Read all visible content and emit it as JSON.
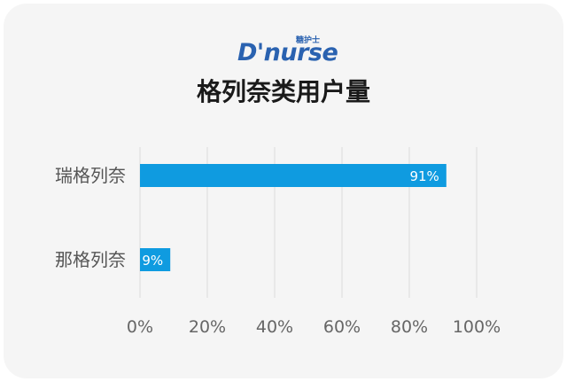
{
  "brand": {
    "logo_text": "D'nurse",
    "logo_cn": "糖护士",
    "color": "#2a62b0"
  },
  "chart_data": {
    "type": "bar",
    "orientation": "horizontal",
    "title": "格列奈类用户量",
    "categories": [
      "瑞格列奈",
      "那格列奈"
    ],
    "values": [
      91,
      9
    ],
    "value_labels": [
      "91%",
      "9%"
    ],
    "xlim": [
      0,
      100
    ],
    "x_ticks": [
      "0%",
      "20%",
      "40%",
      "60%",
      "80%",
      "100%"
    ],
    "x_tick_values": [
      0,
      20,
      40,
      60,
      80,
      100
    ],
    "grid": "vertical",
    "bar_color": "#0f9be0",
    "label_color": "#ffffff"
  }
}
